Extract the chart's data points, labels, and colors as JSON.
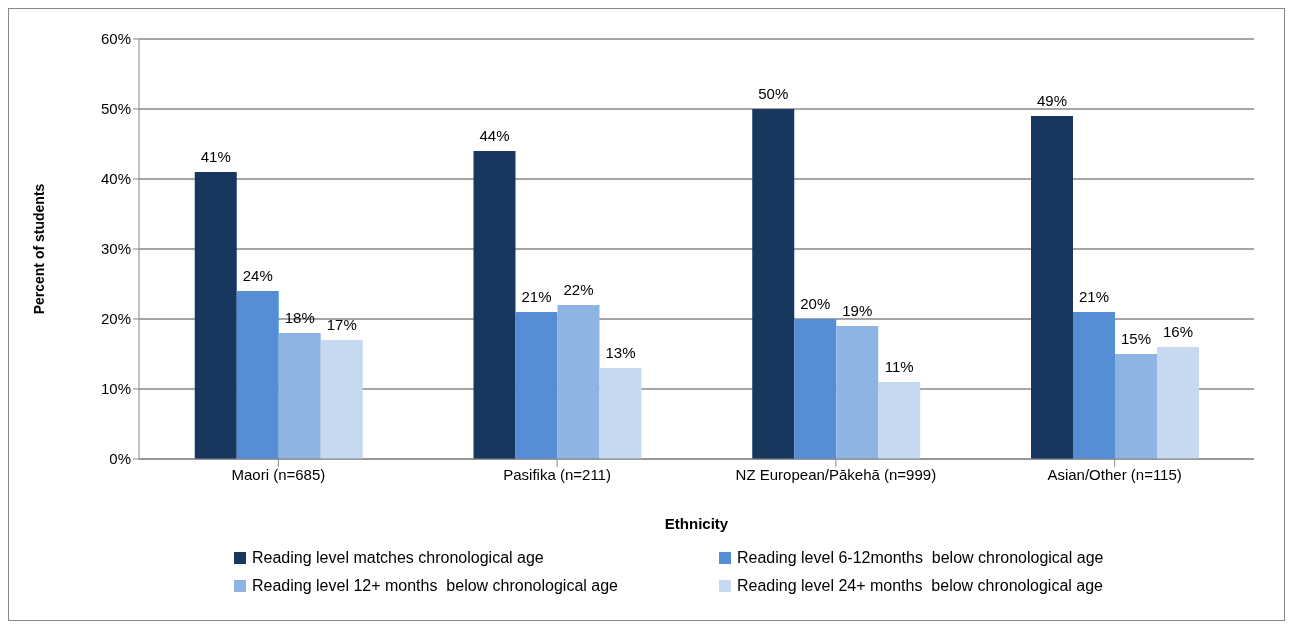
{
  "chart_data": {
    "type": "bar",
    "xlabel": "Ethnicity",
    "ylabel": "Percent of students",
    "categories": [
      "Maori (n=685)",
      "Pasifika (n=211)",
      "NZ European/Pākehā (n=999)",
      "Asian/Other (n=115)"
    ],
    "series": [
      {
        "name": "Reading level matches chronological age",
        "color": "#17375e",
        "values": [
          41,
          44,
          50,
          49
        ],
        "value_labels": [
          "41%",
          "44%",
          "50%",
          "49%"
        ]
      },
      {
        "name": "Reading level 6-12months  below chronological age",
        "color": "#558ed5",
        "values": [
          24,
          21,
          20,
          21
        ],
        "value_labels": [
          "24%",
          "21%",
          "20%",
          "21%"
        ]
      },
      {
        "name": "Reading level 12+ months  below chronological age",
        "color": "#8eb4e3",
        "values": [
          18,
          22,
          19,
          15
        ],
        "value_labels": [
          "18%",
          "22%",
          "19%",
          "15%"
        ]
      },
      {
        "name": "Reading level 24+ months  below chronological age",
        "color": "#c6d9f1",
        "values": [
          17,
          13,
          11,
          16
        ],
        "value_labels": [
          "17%",
          "13%",
          "11%",
          "16%"
        ]
      }
    ],
    "ylim": [
      0,
      60
    ],
    "yticks": [
      {
        "value": 0,
        "label": "0%"
      },
      {
        "value": 10,
        "label": "10%"
      },
      {
        "value": 20,
        "label": "20%"
      },
      {
        "value": 30,
        "label": "30%"
      },
      {
        "value": 40,
        "label": "40%"
      },
      {
        "value": 50,
        "label": "50%"
      },
      {
        "value": 60,
        "label": "60%"
      }
    ],
    "grid": "y",
    "legend": "bottom"
  }
}
